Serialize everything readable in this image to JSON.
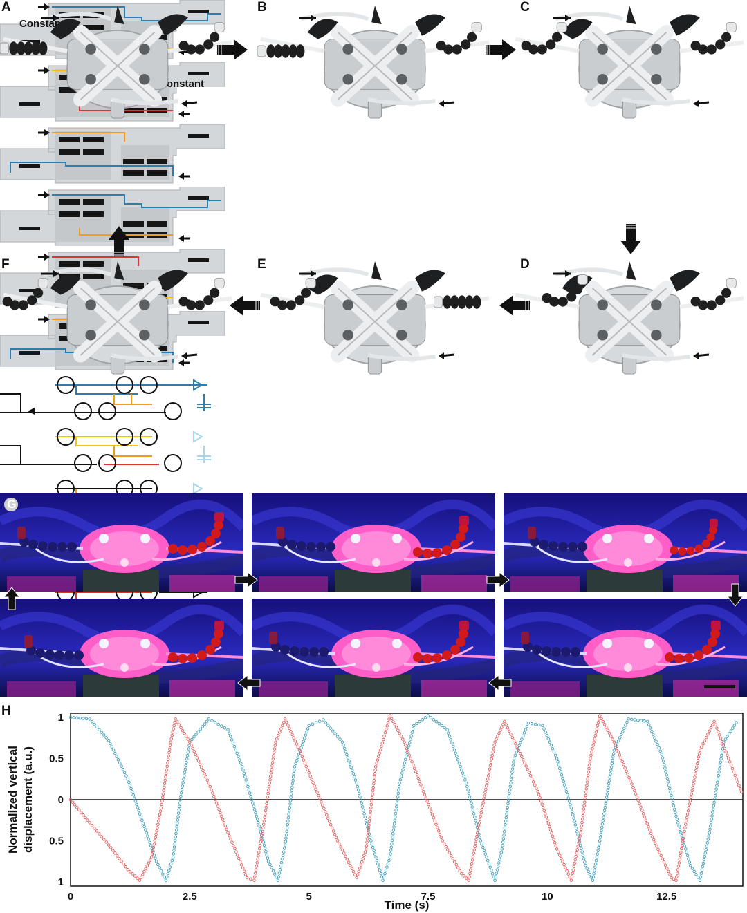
{
  "panels": {
    "A": "A",
    "B": "B",
    "C": "C",
    "D": "D",
    "E": "E",
    "F": "F",
    "G": "G",
    "H": "H"
  },
  "annotations": {
    "constant_top": "Constant",
    "constant_bottom": "Constant"
  },
  "colors": {
    "blue": "#2a7fb0",
    "light_blue": "#a9d6ea",
    "yellow": "#f2c200",
    "orange": "#f29a1b",
    "red": "#e0332b",
    "plot_red": "#e05a5a",
    "plot_blue": "#3d9cb8"
  },
  "chart_data": {
    "type": "scatter",
    "xlabel": "Time (s)",
    "ylabel_line1": "Normalized vertical",
    "ylabel_line2": "displacement (a.u.)",
    "xlim": [
      0,
      14.1
    ],
    "ylim": [
      -1.05,
      1.05
    ],
    "xticks": [
      0,
      2.5,
      5,
      7.5,
      10,
      12.5
    ],
    "xtick_labels": [
      "0",
      "2.5",
      "5",
      "7.5",
      "10",
      "12.5"
    ],
    "yticks": [
      1,
      0.5,
      0,
      -0.5,
      -1
    ],
    "ytick_labels": [
      "1",
      "0.5",
      "0",
      "0.5",
      "1"
    ],
    "series": [
      {
        "color": "#3d9cb8",
        "points": [
          [
            0,
            1
          ],
          [
            0.4,
            0.98
          ],
          [
            0.8,
            0.72
          ],
          [
            1.2,
            0.25
          ],
          [
            1.5,
            -0.25
          ],
          [
            1.8,
            -0.75
          ],
          [
            2.0,
            -0.98
          ],
          [
            2.15,
            -0.7
          ],
          [
            2.3,
            0
          ],
          [
            2.5,
            0.7
          ],
          [
            2.9,
            0.98
          ],
          [
            3.3,
            0.85
          ],
          [
            3.6,
            0.4
          ],
          [
            3.9,
            -0.2
          ],
          [
            4.15,
            -0.75
          ],
          [
            4.35,
            -0.98
          ],
          [
            4.5,
            -0.55
          ],
          [
            4.7,
            0.4
          ],
          [
            5.0,
            0.9
          ],
          [
            5.3,
            0.97
          ],
          [
            5.7,
            0.7
          ],
          [
            6.0,
            0.2
          ],
          [
            6.3,
            -0.5
          ],
          [
            6.55,
            -0.98
          ],
          [
            6.7,
            -0.7
          ],
          [
            6.9,
            0.2
          ],
          [
            7.2,
            0.9
          ],
          [
            7.5,
            1.02
          ],
          [
            7.9,
            0.85
          ],
          [
            8.3,
            0.2
          ],
          [
            8.6,
            -0.5
          ],
          [
            8.9,
            -0.98
          ],
          [
            9.05,
            -0.6
          ],
          [
            9.3,
            0.5
          ],
          [
            9.6,
            0.93
          ],
          [
            9.9,
            0.9
          ],
          [
            10.2,
            0.5
          ],
          [
            10.5,
            -0.1
          ],
          [
            10.8,
            -0.8
          ],
          [
            10.95,
            -0.98
          ],
          [
            11.1,
            -0.5
          ],
          [
            11.4,
            0.6
          ],
          [
            11.7,
            0.98
          ],
          [
            12.1,
            0.95
          ],
          [
            12.4,
            0.55
          ],
          [
            12.7,
            -0.2
          ],
          [
            13.0,
            -0.8
          ],
          [
            13.2,
            -0.98
          ],
          [
            13.4,
            -0.4
          ],
          [
            13.7,
            0.7
          ],
          [
            14.0,
            0.97
          ]
        ]
      },
      {
        "color": "#e05a5a",
        "points": [
          [
            0,
            0
          ],
          [
            0.4,
            -0.28
          ],
          [
            0.8,
            -0.55
          ],
          [
            1.2,
            -0.85
          ],
          [
            1.45,
            -0.98
          ],
          [
            1.7,
            -0.7
          ],
          [
            1.9,
            -0.1
          ],
          [
            2.1,
            0.7
          ],
          [
            2.2,
            0.98
          ],
          [
            2.5,
            0.7
          ],
          [
            2.9,
            0.2
          ],
          [
            3.3,
            -0.4
          ],
          [
            3.7,
            -0.95
          ],
          [
            3.85,
            -0.98
          ],
          [
            4.05,
            -0.3
          ],
          [
            4.3,
            0.7
          ],
          [
            4.5,
            0.98
          ],
          [
            4.8,
            0.6
          ],
          [
            5.2,
            0.05
          ],
          [
            5.6,
            -0.5
          ],
          [
            6.0,
            -0.95
          ],
          [
            6.2,
            -0.6
          ],
          [
            6.4,
            0.4
          ],
          [
            6.7,
            1.02
          ],
          [
            7.0,
            0.7
          ],
          [
            7.4,
            0.1
          ],
          [
            7.8,
            -0.5
          ],
          [
            8.2,
            -0.9
          ],
          [
            8.35,
            -0.98
          ],
          [
            8.6,
            -0.2
          ],
          [
            8.9,
            0.7
          ],
          [
            9.1,
            0.95
          ],
          [
            9.4,
            0.6
          ],
          [
            9.8,
            0.1
          ],
          [
            10.2,
            -0.6
          ],
          [
            10.5,
            -0.98
          ],
          [
            10.7,
            -0.4
          ],
          [
            10.9,
            0.5
          ],
          [
            11.1,
            1.02
          ],
          [
            11.4,
            0.7
          ],
          [
            11.8,
            0.15
          ],
          [
            12.2,
            -0.45
          ],
          [
            12.6,
            -0.95
          ],
          [
            12.7,
            -0.98
          ],
          [
            12.9,
            -0.3
          ],
          [
            13.2,
            0.6
          ],
          [
            13.5,
            0.95
          ],
          [
            13.8,
            0.5
          ],
          [
            14.1,
            0.05
          ]
        ]
      }
    ]
  }
}
